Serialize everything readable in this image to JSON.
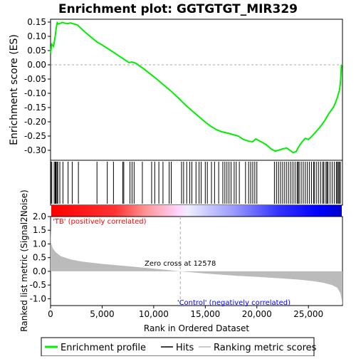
{
  "chart_data": {
    "type": "line",
    "title": "Enrichment plot: GGTGTGT_MIR329",
    "enrichment_panel": {
      "ylabel": "Enrichment score (ES)",
      "ylim": [
        -0.335,
        0.16
      ],
      "yticks": [
        0.15,
        0.1,
        0.05,
        0.0,
        -0.05,
        -0.1,
        -0.15,
        -0.2,
        -0.25,
        -0.3
      ],
      "ytick_labels": [
        "0.15",
        "0.10",
        "0.05",
        "0.00",
        "-0.05",
        "-0.10",
        "-0.15",
        "-0.20",
        "-0.25",
        "-0.30"
      ],
      "series": [
        {
          "name": "Enrichment profile",
          "color": "#00ee00",
          "x": [
            0,
            120,
            300,
            450,
            550,
            650,
            760,
            900,
            1150,
            1400,
            1700,
            1950,
            2300,
            2600,
            2900,
            3400,
            3900,
            4500,
            5000,
            5500,
            6100,
            6600,
            7100,
            7600,
            7900,
            8300,
            9000,
            9700,
            10300,
            11000,
            11700,
            12500,
            13200,
            14000,
            14800,
            15500,
            16100,
            16600,
            17200,
            17700,
            18200,
            18700,
            19200,
            19600,
            19900,
            20400,
            20900,
            21400,
            21800,
            22100,
            22500,
            22900,
            23200,
            23500,
            23800,
            24100,
            24400,
            24700,
            25000,
            25300,
            25600,
            25800,
            26100,
            26400,
            26600,
            26800,
            27000,
            27200,
            27400,
            27600,
            27800,
            28000,
            28100,
            28200
          ],
          "y": [
            0.04,
            0.072,
            0.065,
            0.1,
            0.13,
            0.148,
            0.143,
            0.145,
            0.149,
            0.146,
            0.145,
            0.147,
            0.143,
            0.14,
            0.13,
            0.113,
            0.098,
            0.08,
            0.07,
            0.058,
            0.044,
            0.032,
            0.02,
            0.008,
            0.01,
            0.005,
            -0.013,
            -0.033,
            -0.05,
            -0.072,
            -0.093,
            -0.12,
            -0.145,
            -0.17,
            -0.195,
            -0.215,
            -0.228,
            -0.235,
            -0.24,
            -0.245,
            -0.25,
            -0.262,
            -0.268,
            -0.27,
            -0.26,
            -0.27,
            -0.28,
            -0.296,
            -0.303,
            -0.3,
            -0.295,
            -0.292,
            -0.3,
            -0.308,
            -0.305,
            -0.285,
            -0.27,
            -0.258,
            -0.262,
            -0.252,
            -0.24,
            -0.232,
            -0.22,
            -0.205,
            -0.195,
            -0.182,
            -0.17,
            -0.16,
            -0.15,
            -0.135,
            -0.115,
            -0.09,
            -0.065,
            0.0
          ]
        }
      ],
      "hits_label": "Hits",
      "hit_positions": [
        30,
        120,
        350,
        450,
        520,
        620,
        700,
        900,
        1200,
        1700,
        2100,
        2700,
        4500,
        5500,
        6100,
        7000,
        7100,
        7700,
        7900,
        8100,
        8900,
        9800,
        10100,
        10500,
        10900,
        11500,
        11700,
        12700,
        12900,
        13200,
        13500,
        13700,
        14100,
        14400,
        14600,
        15000,
        15200,
        15600,
        15900,
        16300,
        16700,
        16900,
        17100,
        17300,
        17500,
        17800,
        18000,
        18300,
        18900,
        19200,
        19400,
        19600,
        19800,
        20000,
        21700,
        21900,
        22100,
        22300,
        22500,
        22700,
        22900,
        23100,
        23300,
        23500,
        23700,
        23900,
        24000,
        24100,
        24300,
        24500,
        24700,
        24900,
        25100,
        25300,
        25500,
        25600,
        25800,
        26000,
        26200,
        26400,
        26500,
        26700,
        26800,
        26900,
        27100,
        27300,
        27500,
        27700,
        27800,
        27900,
        28000,
        28100
      ]
    },
    "metric_panel": {
      "ylabel": "Ranked list metric (Signal2Noise)",
      "xlabel": "Rank in Ordered Dataset",
      "xlim": [
        0,
        28300
      ],
      "xticks": [
        0,
        5000,
        10000,
        15000,
        20000,
        25000
      ],
      "xtick_labels": [
        "0",
        "5,000",
        "10,000",
        "15,000",
        "20,000",
        "25,000"
      ],
      "ylim": [
        -1.25,
        2.0
      ],
      "yticks": [
        2.0,
        1.5,
        1.0,
        0.5,
        0.0,
        -0.5,
        -1.0
      ],
      "ytick_labels": [
        "2.0",
        "1.5",
        "1.0",
        "0.5",
        "0.0",
        "-0.5",
        "-1.0"
      ],
      "series": [
        {
          "name": "Ranking metric scores",
          "color": "#bbbbbb",
          "x": [
            0,
            50,
            200,
            500,
            1000,
            2000,
            3000,
            5000,
            8000,
            10000,
            12578,
            15000,
            18000,
            20000,
            22000,
            24000,
            25500,
            26500,
            27300,
            27800,
            28100,
            28200,
            28300
          ],
          "y": [
            1.6,
            1.05,
            0.85,
            0.7,
            0.55,
            0.43,
            0.36,
            0.27,
            0.17,
            0.1,
            0.0,
            -0.08,
            -0.16,
            -0.2,
            -0.25,
            -0.3,
            -0.36,
            -0.42,
            -0.5,
            -0.6,
            -0.8,
            -1.0,
            -1.25
          ]
        }
      ],
      "zero_cross_label": "Zero cross at 12578",
      "zero_cross": 12578,
      "positive_label": "'TB' (positively correlated)",
      "negative_label": "'Control' (negatively correlated)"
    },
    "legend": {
      "placement": "bottom",
      "items": [
        "Enrichment profile",
        "Hits",
        "Ranking metric scores"
      ]
    },
    "colors": {
      "profile": "#00ee00",
      "hits": "#000000",
      "metric": "#bbbbbb",
      "positive": "#ff0000",
      "negative": "#0000ff",
      "zero_line": "#aaaaaa"
    }
  }
}
